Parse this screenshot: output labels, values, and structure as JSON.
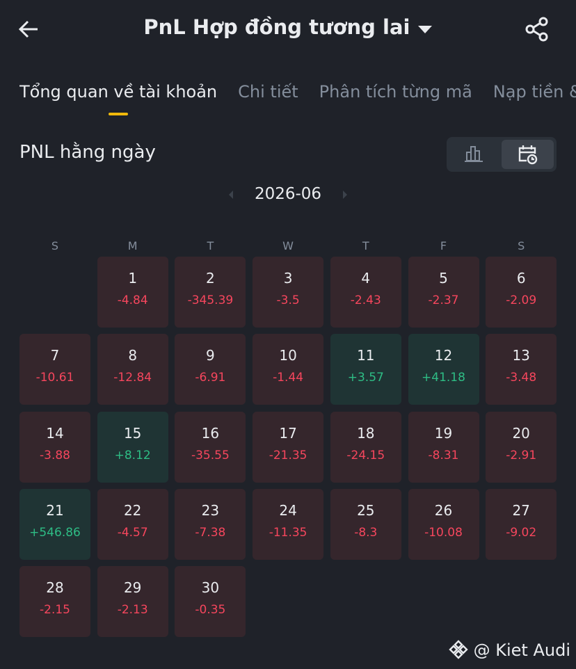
{
  "header": {
    "title": "PnL Hợp đồng tương lai"
  },
  "tabs": [
    "Tổng quan về tài khoản",
    "Chi tiết",
    "Phân tích từng mã",
    "Nạp tiền & G"
  ],
  "section": {
    "title": "PNL hằng ngày"
  },
  "calendar": {
    "month": "2026-06",
    "weekdays": [
      "S",
      "M",
      "T",
      "W",
      "T",
      "F",
      "S"
    ],
    "days": [
      {
        "day": 1,
        "pnl": "-4.84"
      },
      {
        "day": 2,
        "pnl": "-345.39"
      },
      {
        "day": 3,
        "pnl": "-3.5"
      },
      {
        "day": 4,
        "pnl": "-2.43"
      },
      {
        "day": 5,
        "pnl": "-2.37"
      },
      {
        "day": 6,
        "pnl": "-2.09"
      },
      {
        "day": 7,
        "pnl": "-10.61"
      },
      {
        "day": 8,
        "pnl": "-12.84"
      },
      {
        "day": 9,
        "pnl": "-6.91"
      },
      {
        "day": 10,
        "pnl": "-1.44"
      },
      {
        "day": 11,
        "pnl": "+3.57"
      },
      {
        "day": 12,
        "pnl": "+41.18"
      },
      {
        "day": 13,
        "pnl": "-3.48"
      },
      {
        "day": 14,
        "pnl": "-3.88"
      },
      {
        "day": 15,
        "pnl": "+8.12"
      },
      {
        "day": 16,
        "pnl": "-35.55"
      },
      {
        "day": 17,
        "pnl": "-21.35"
      },
      {
        "day": 18,
        "pnl": "-24.15"
      },
      {
        "day": 19,
        "pnl": "-8.31"
      },
      {
        "day": 20,
        "pnl": "-2.91"
      },
      {
        "day": 21,
        "pnl": "+546.86"
      },
      {
        "day": 22,
        "pnl": "-4.57"
      },
      {
        "day": 23,
        "pnl": "-7.38"
      },
      {
        "day": 24,
        "pnl": "-11.35"
      },
      {
        "day": 25,
        "pnl": "-8.3"
      },
      {
        "day": 26,
        "pnl": "-10.08"
      },
      {
        "day": 27,
        "pnl": "-9.02"
      },
      {
        "day": 28,
        "pnl": "-2.15"
      },
      {
        "day": 29,
        "pnl": "-2.13"
      },
      {
        "day": 30,
        "pnl": "-0.35"
      }
    ]
  },
  "watermark": "@ Kiet Audi"
}
